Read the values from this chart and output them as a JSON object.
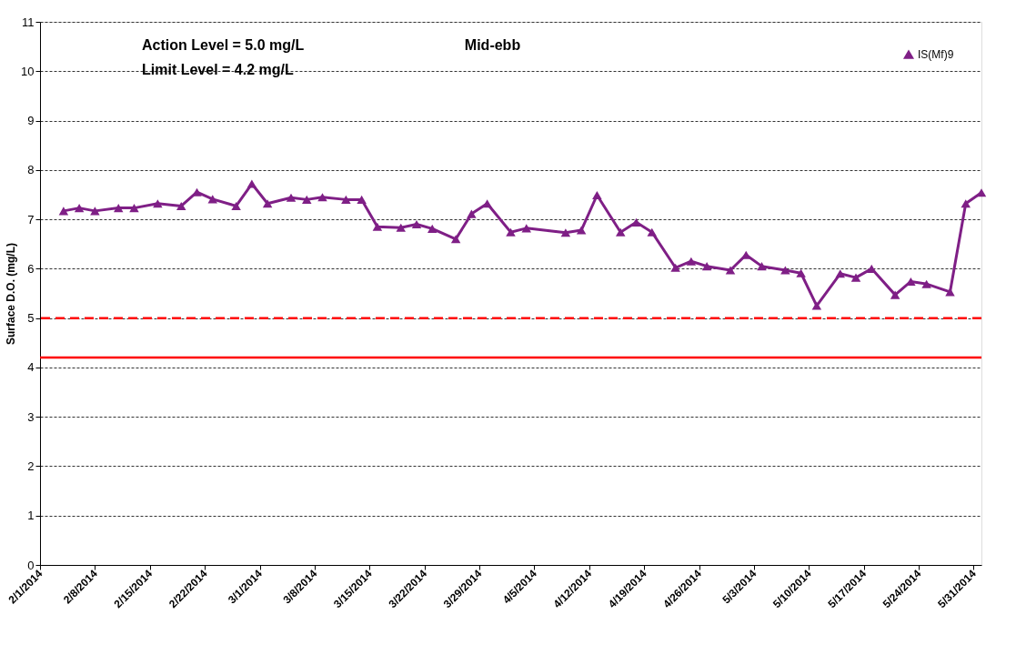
{
  "chart_data": {
    "type": "line",
    "title": "Mid-ebb",
    "ylabel": "Surface D.O. (mg/L)",
    "x": [
      "2014-02-04",
      "2014-02-06",
      "2014-02-08",
      "2014-02-11",
      "2014-02-13",
      "2014-02-16",
      "2014-02-19",
      "2014-02-21",
      "2014-02-23",
      "2014-02-26",
      "2014-02-28",
      "2014-03-02",
      "2014-03-05",
      "2014-03-07",
      "2014-03-09",
      "2014-03-12",
      "2014-03-14",
      "2014-03-16",
      "2014-03-19",
      "2014-03-21",
      "2014-03-23",
      "2014-03-26",
      "2014-03-28",
      "2014-03-30",
      "2014-04-02",
      "2014-04-04",
      "2014-04-09",
      "2014-04-11",
      "2014-04-13",
      "2014-04-16",
      "2014-04-18",
      "2014-04-20",
      "2014-04-23",
      "2014-04-25",
      "2014-04-27",
      "2014-04-30",
      "2014-05-02",
      "2014-05-04",
      "2014-05-07",
      "2014-05-09",
      "2014-05-11",
      "2014-05-14",
      "2014-05-16",
      "2014-05-18",
      "2014-05-21",
      "2014-05-23",
      "2014-05-25",
      "2014-05-28",
      "2014-05-30",
      "2014-06-01"
    ],
    "series": [
      {
        "name": "IS(Mf)9",
        "color": "#7f1f86",
        "values": [
          7.17,
          7.23,
          7.17,
          7.23,
          7.23,
          7.32,
          7.27,
          7.55,
          7.41,
          7.27,
          7.72,
          7.32,
          7.44,
          7.4,
          7.45,
          7.4,
          7.4,
          6.85,
          6.83,
          6.9,
          6.81,
          6.6,
          7.11,
          7.32,
          6.74,
          6.82,
          6.73,
          6.78,
          7.49,
          6.74,
          6.94,
          6.74,
          6.02,
          6.15,
          6.05,
          5.97,
          6.28,
          6.05,
          5.97,
          5.91,
          5.25,
          5.9,
          5.82,
          6.0,
          5.47,
          5.74,
          5.69,
          5.53,
          7.32,
          7.54
        ]
      }
    ],
    "xlim": [
      "2014-02-01",
      "2014-06-01"
    ],
    "xticks": [
      {
        "value": "2014-02-01",
        "label": "2/1/2014"
      },
      {
        "value": "2014-02-08",
        "label": "2/8/2014"
      },
      {
        "value": "2014-02-15",
        "label": "2/15/2014"
      },
      {
        "value": "2014-02-22",
        "label": "2/22/2014"
      },
      {
        "value": "2014-03-01",
        "label": "3/1/2014"
      },
      {
        "value": "2014-03-08",
        "label": "3/8/2014"
      },
      {
        "value": "2014-03-15",
        "label": "3/15/2014"
      },
      {
        "value": "2014-03-22",
        "label": "3/22/2014"
      },
      {
        "value": "2014-03-29",
        "label": "3/29/2014"
      },
      {
        "value": "2014-04-05",
        "label": "4/5/2014"
      },
      {
        "value": "2014-04-12",
        "label": "4/12/2014"
      },
      {
        "value": "2014-04-19",
        "label": "4/19/2014"
      },
      {
        "value": "2014-04-26",
        "label": "4/26/2014"
      },
      {
        "value": "2014-05-03",
        "label": "5/3/2014"
      },
      {
        "value": "2014-05-10",
        "label": "5/10/2014"
      },
      {
        "value": "2014-05-17",
        "label": "5/17/2014"
      },
      {
        "value": "2014-05-24",
        "label": "5/24/2014"
      },
      {
        "value": "2014-05-31",
        "label": "5/31/2014"
      }
    ],
    "ylim": [
      0,
      11
    ],
    "yticks": [
      0,
      1,
      2,
      3,
      4,
      5,
      6,
      7,
      8,
      9,
      10,
      11
    ],
    "ref_lines": [
      {
        "axis": "y",
        "value": 5.0,
        "color": "#ff0000",
        "line_style": "dashed"
      },
      {
        "axis": "y",
        "value": 4.2,
        "color": "#ff0000",
        "line_style": "solid"
      }
    ],
    "annotations": [
      "Action Level = 5.0 mg/L",
      "Limit Level = 4.2 mg/L"
    ],
    "grid": "y",
    "legend": "top right",
    "marker": "triangle",
    "line_style": "solid"
  }
}
